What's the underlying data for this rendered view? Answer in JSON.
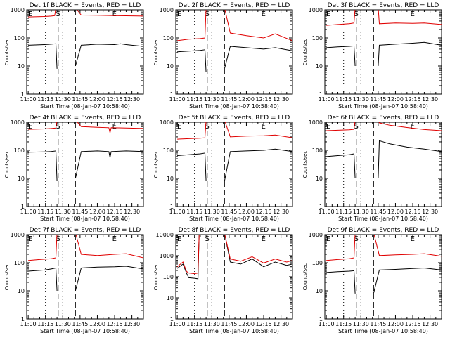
{
  "figure": {
    "title": "Detector count rates, 3x3 grid"
  },
  "colors": {
    "events": "#000000",
    "lld": "#e00000",
    "axis": "#000000",
    "background": "#ffffff"
  },
  "common": {
    "ylabel": "Counts/sec",
    "xlabel": "Start Time (08-Jan-07 10:58:40)",
    "xticks": [
      "11:00",
      "11:15",
      "11:30",
      "11:45",
      "12:00",
      "12:15",
      "12:30"
    ],
    "yticks": [
      "1",
      "10",
      "100",
      "1000"
    ],
    "yticks_bigmax": [
      "1",
      "10",
      "100",
      "1000",
      "10000"
    ],
    "markers": [
      "E",
      "S",
      "E"
    ]
  },
  "chart_data": [
    {
      "type": "line",
      "title": "Det 1f BLACK = Events, RED = LLD",
      "xlabel": "Start Time (08-Jan-07 10:58:40)",
      "ylabel": "Counts/sec",
      "xlim_minutes": [
        0,
        100
      ],
      "ylim_log": [
        1,
        1000
      ],
      "series": [
        {
          "name": "Events",
          "color": "black",
          "x": [
            0,
            14,
            20,
            24,
            25,
            40,
            41,
            46,
            60,
            75,
            80,
            85,
            90,
            100
          ],
          "y": [
            55,
            58,
            60,
            62,
            8,
            null,
            10,
            55,
            60,
            58,
            62,
            58,
            55,
            50
          ]
        },
        {
          "name": "LLD",
          "color": "red",
          "x": [
            0,
            14,
            20,
            23,
            24,
            40,
            41,
            46,
            60,
            75,
            90,
            100
          ],
          "y": [
            560,
            580,
            600,
            620,
            1200,
            null,
            1200,
            650,
            640,
            620,
            610,
            600
          ]
        }
      ]
    },
    {
      "type": "line",
      "title": "Det 2f BLACK = Events, RED = LLD",
      "xlabel": "Start Time (08-Jan-07 10:58:40)",
      "ylabel": "Counts/sec",
      "xlim_minutes": [
        0,
        100
      ],
      "ylim_log": [
        1,
        1000
      ],
      "series": [
        {
          "name": "Events",
          "color": "black",
          "x": [
            0,
            10,
            20,
            24,
            25,
            40,
            41,
            46,
            60,
            75,
            85,
            100
          ],
          "y": [
            32,
            34,
            36,
            38,
            6,
            null,
            8,
            50,
            45,
            40,
            45,
            35
          ]
        },
        {
          "name": "LLD",
          "color": "red",
          "x": [
            0,
            10,
            20,
            24,
            25,
            40,
            41,
            46,
            60,
            75,
            85,
            100
          ],
          "y": [
            80,
            90,
            95,
            100,
            1200,
            null,
            1200,
            150,
            120,
            100,
            140,
            80
          ]
        }
      ]
    },
    {
      "type": "line",
      "title": "Det 3f BLACK = Events, RED = LLD",
      "xlabel": "Start Time (08-Jan-07 10:58:40)",
      "ylabel": "Counts/sec",
      "xlim_minutes": [
        0,
        100
      ],
      "ylim_log": [
        1,
        1000
      ],
      "series": [
        {
          "name": "Events",
          "color": "black",
          "x": [
            0,
            10,
            20,
            24,
            25,
            40,
            45,
            46,
            60,
            75,
            85,
            100
          ],
          "y": [
            45,
            48,
            50,
            52,
            10,
            null,
            10,
            55,
            60,
            65,
            70,
            55
          ]
        },
        {
          "name": "LLD",
          "color": "red",
          "x": [
            0,
            10,
            20,
            24,
            25,
            40,
            45,
            46,
            60,
            75,
            85,
            100
          ],
          "y": [
            280,
            300,
            320,
            340,
            1200,
            null,
            1200,
            320,
            340,
            330,
            340,
            300
          ]
        }
      ]
    },
    {
      "type": "line",
      "title": "Det 4f BLACK = Events, RED = LLD",
      "xlabel": "Start Time (08-Jan-07 10:58:40)",
      "ylabel": "Counts/sec",
      "xlim_minutes": [
        0,
        100
      ],
      "ylim_log": [
        1,
        1000
      ],
      "series": [
        {
          "name": "Events",
          "color": "black",
          "x": [
            0,
            14,
            20,
            24,
            25,
            40,
            41,
            46,
            60,
            70,
            71,
            72,
            85,
            100
          ],
          "y": [
            85,
            88,
            90,
            95,
            8,
            null,
            10,
            90,
            95,
            90,
            55,
            90,
            95,
            90
          ]
        },
        {
          "name": "LLD",
          "color": "red",
          "x": [
            0,
            14,
            20,
            24,
            25,
            40,
            41,
            46,
            60,
            70,
            71,
            72,
            85,
            100
          ],
          "y": [
            560,
            580,
            600,
            620,
            1200,
            null,
            1200,
            700,
            660,
            640,
            420,
            640,
            620,
            600
          ]
        }
      ]
    },
    {
      "type": "line",
      "title": "Det 5f BLACK = Events, RED = LLD",
      "xlabel": "Start Time (08-Jan-07 10:58:40)",
      "ylabel": "Counts/sec",
      "xlim_minutes": [
        0,
        100
      ],
      "ylim_log": [
        1,
        1000
      ],
      "series": [
        {
          "name": "Events",
          "color": "black",
          "x": [
            0,
            10,
            20,
            24,
            25,
            40,
            41,
            46,
            60,
            75,
            85,
            100
          ],
          "y": [
            65,
            70,
            75,
            80,
            8,
            null,
            8,
            90,
            95,
            100,
            110,
            90
          ]
        },
        {
          "name": "LLD",
          "color": "red",
          "x": [
            0,
            10,
            20,
            24,
            25,
            40,
            41,
            46,
            60,
            75,
            85,
            100
          ],
          "y": [
            250,
            260,
            270,
            280,
            1200,
            null,
            1200,
            300,
            320,
            330,
            350,
            280
          ]
        }
      ]
    },
    {
      "type": "line",
      "title": "Det 6f BLACK = Events, RED = LLD",
      "xlabel": "Start Time (08-Jan-07 10:58:40)",
      "ylabel": "Counts/sec",
      "xlim_minutes": [
        0,
        100
      ],
      "ylim_log": [
        1,
        1000
      ],
      "series": [
        {
          "name": "Events",
          "color": "black",
          "x": [
            0,
            10,
            20,
            24,
            25,
            40,
            45,
            46,
            55,
            70,
            85,
            100
          ],
          "y": [
            60,
            65,
            70,
            75,
            10,
            null,
            10,
            220,
            170,
            130,
            110,
            90
          ]
        },
        {
          "name": "LLD",
          "color": "red",
          "x": [
            0,
            10,
            20,
            24,
            25,
            40,
            45,
            46,
            55,
            70,
            85,
            100
          ],
          "y": [
            500,
            520,
            540,
            560,
            1200,
            null,
            1200,
            950,
            780,
            650,
            550,
            500
          ]
        }
      ]
    },
    {
      "type": "line",
      "title": "Det 7f BLACK = Events, RED = LLD",
      "xlabel": "Start Time (08-Jan-07 10:58:40)",
      "ylabel": "Counts/sec",
      "xlim_minutes": [
        0,
        100
      ],
      "ylim_log": [
        1,
        1000
      ],
      "series": [
        {
          "name": "Events",
          "color": "black",
          "x": [
            0,
            14,
            20,
            24,
            25,
            40,
            41,
            46,
            60,
            75,
            85,
            100
          ],
          "y": [
            50,
            55,
            60,
            65,
            10,
            null,
            10,
            65,
            70,
            72,
            75,
            60
          ]
        },
        {
          "name": "LLD",
          "color": "red",
          "x": [
            0,
            10,
            20,
            24,
            25,
            40,
            41,
            46,
            60,
            75,
            85,
            100
          ],
          "y": [
            120,
            130,
            140,
            150,
            1200,
            null,
            1200,
            200,
            180,
            200,
            210,
            150
          ]
        }
      ]
    },
    {
      "type": "line",
      "title": "Det 8f BLACK = Events, RED = LLD",
      "xlabel": "Start Time (08-Jan-07 10:58:40)",
      "ylabel": "Counts/sec",
      "xlim_minutes": [
        0,
        100
      ],
      "ylim_log": [
        1,
        10000
      ],
      "series": [
        {
          "name": "Events",
          "color": "black",
          "x": [
            0,
            5,
            8,
            10,
            15,
            18,
            19,
            40,
            41,
            46,
            55,
            65,
            75,
            85,
            95,
            100
          ],
          "y": [
            250,
            400,
            150,
            90,
            85,
            80,
            12000,
            null,
            12000,
            500,
            400,
            700,
            300,
            500,
            350,
            400
          ]
        },
        {
          "name": "LLD",
          "color": "red",
          "x": [
            0,
            5,
            8,
            10,
            15,
            18,
            19,
            40,
            41,
            46,
            55,
            65,
            75,
            85,
            95,
            100
          ],
          "y": [
            300,
            500,
            180,
            150,
            140,
            150,
            12000,
            null,
            12000,
            700,
            550,
            900,
            450,
            700,
            500,
            600
          ]
        }
      ]
    },
    {
      "type": "line",
      "title": "Det 9f BLACK = Events, RED = LLD",
      "xlabel": "Start Time (08-Jan-07 10:58:40)",
      "ylabel": "Counts/sec",
      "xlim_minutes": [
        0,
        100
      ],
      "ylim_log": [
        1,
        1000
      ],
      "series": [
        {
          "name": "Events",
          "color": "black",
          "x": [
            0,
            10,
            20,
            24,
            25,
            40,
            41,
            46,
            60,
            75,
            85,
            100
          ],
          "y": [
            45,
            48,
            50,
            52,
            8,
            null,
            8,
            55,
            58,
            62,
            65,
            55
          ]
        },
        {
          "name": "LLD",
          "color": "red",
          "x": [
            0,
            10,
            20,
            24,
            25,
            40,
            41,
            46,
            60,
            75,
            85,
            100
          ],
          "y": [
            120,
            130,
            140,
            150,
            1200,
            null,
            1200,
            180,
            190,
            200,
            210,
            170
          ]
        }
      ]
    }
  ]
}
